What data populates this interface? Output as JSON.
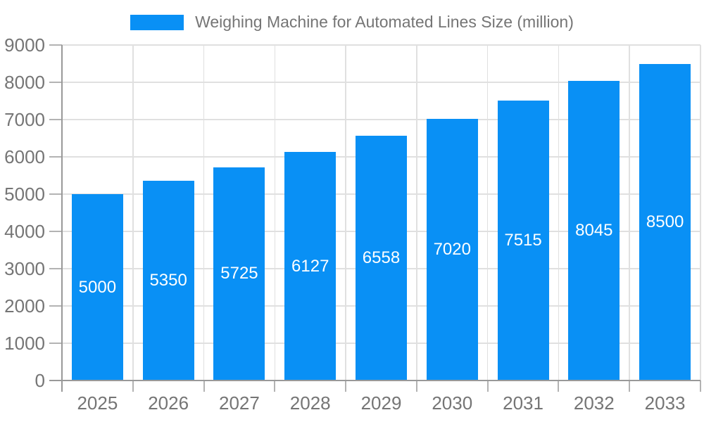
{
  "chart_data": {
    "type": "bar",
    "title": "Weighing Machine for Automated Lines Size (million)",
    "categories": [
      "2025",
      "2026",
      "2027",
      "2028",
      "2029",
      "2030",
      "2031",
      "2032",
      "2033"
    ],
    "values": [
      5000,
      5350,
      5725,
      6127,
      6558,
      7020,
      7515,
      8045,
      8500
    ],
    "xlabel": "",
    "ylabel": "",
    "ylim": [
      0,
      9000
    ],
    "ytick_step": 1000,
    "yticks": [
      "0",
      "1000",
      "2000",
      "3000",
      "4000",
      "5000",
      "6000",
      "7000",
      "8000",
      "9000"
    ],
    "grid": true,
    "legend_position": "top-center",
    "value_label_position": "inside-center",
    "colors": {
      "bar": "#0990f5",
      "axis_text": "#757575",
      "legend_text": "#757575",
      "value_text": "#ffffff",
      "axis_line": "#999999",
      "tick_line": "#b3b3b3",
      "grid_line": "#e0e0e0",
      "background": "#ffffff"
    }
  }
}
